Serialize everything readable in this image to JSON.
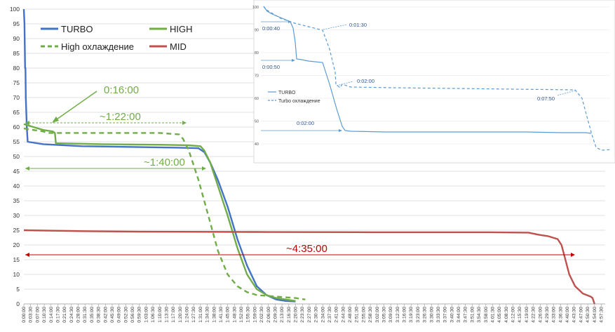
{
  "chart_data": [
    {
      "type": "line",
      "x_unit": "h:mm:ss",
      "ylim": [
        0,
        100
      ],
      "yticks": [
        0,
        5,
        10,
        15,
        20,
        25,
        30,
        35,
        40,
        45,
        50,
        55,
        60,
        65,
        70,
        75,
        80,
        85,
        90,
        95,
        100
      ],
      "xlim": [
        "0:00:00",
        "4:59:30"
      ],
      "xtick_step": "0:03:30",
      "xticks": [
        "0:00:00",
        "0:03:30",
        "0:07:00",
        "0:10:30",
        "0:14:00",
        "0:17:30",
        "0:21:00",
        "0:24:30",
        "0:28:00",
        "0:31:30",
        "0:35:00",
        "0:38:30",
        "0:42:00",
        "0:45:30",
        "0:49:00",
        "0:52:30",
        "0:56:00",
        "0:59:30",
        "1:03:00",
        "1:06:30",
        "1:10:00",
        "1:13:30",
        "1:17:00",
        "1:20:30",
        "1:24:00",
        "1:27:30",
        "1:31:00",
        "1:34:30",
        "1:38:00",
        "1:41:30",
        "1:45:00",
        "1:48:30",
        "1:52:00",
        "1:55:30",
        "1:59:00",
        "2:02:30",
        "2:06:00",
        "2:09:30",
        "2:13:00",
        "2:16:30",
        "2:20:00",
        "2:23:30",
        "2:27:00",
        "2:30:30",
        "2:34:00",
        "2:37:30",
        "2:41:00",
        "2:44:30",
        "2:48:00",
        "2:51:30",
        "2:55:00",
        "2:58:30",
        "3:02:00",
        "3:05:30",
        "3:09:00",
        "3:12:30",
        "3:16:00",
        "3:19:30",
        "3:23:00",
        "3:26:30",
        "3:30:00",
        "3:33:30",
        "3:37:00",
        "3:40:30",
        "3:44:00",
        "3:47:30",
        "3:51:00",
        "3:54:30",
        "3:58:00",
        "4:01:30",
        "4:05:00",
        "4:08:30",
        "4:12:00",
        "4:15:30",
        "4:19:00",
        "4:22:30",
        "4:26:00",
        "4:29:30",
        "4:33:00",
        "4:36:30",
        "4:40:00",
        "4:43:30",
        "4:47:00",
        "4:50:30",
        "4:54:00",
        "4:57:30"
      ],
      "grid": true,
      "legend": "top-left",
      "series": [
        {
          "name": "TURBO",
          "color": "#4472c4",
          "dash": false,
          "points": [
            [
              "0:00:00",
              100
            ],
            [
              "0:00:20",
              95
            ],
            [
              "0:00:40",
              80
            ],
            [
              "0:00:50",
              80
            ],
            [
              "0:01:00",
              70
            ],
            [
              "0:01:30",
              60
            ],
            [
              "0:02:00",
              55
            ],
            [
              "0:10:00",
              54.2
            ],
            [
              "0:30:00",
              53.5
            ],
            [
              "1:00:00",
              53.2
            ],
            [
              "1:20:00",
              53
            ],
            [
              "1:30:00",
              52.8
            ],
            [
              "1:33:00",
              51.5
            ],
            [
              "1:36:00",
              48
            ],
            [
              "1:40:00",
              42
            ],
            [
              "1:45:00",
              33
            ],
            [
              "1:50:00",
              22
            ],
            [
              "1:55:00",
              13
            ],
            [
              "2:00:00",
              6
            ],
            [
              "2:05:00",
              3
            ],
            [
              "2:10:00",
              1.5
            ],
            [
              "2:15:00",
              1
            ],
            [
              "2:20:00",
              0.8
            ]
          ]
        },
        {
          "name": "HIGH",
          "color": "#70ad47",
          "dash": false,
          "points": [
            [
              "0:00:00",
              61
            ],
            [
              "0:05:00",
              60
            ],
            [
              "0:10:00",
              59
            ],
            [
              "0:15:00",
              58.5
            ],
            [
              "0:16:00",
              58
            ],
            [
              "0:16:30",
              54.5
            ],
            [
              "0:40:00",
              54.2
            ],
            [
              "1:10:00",
              54
            ],
            [
              "1:25:00",
              53.8
            ],
            [
              "1:31:00",
              53.5
            ],
            [
              "1:33:00",
              52
            ],
            [
              "1:36:00",
              48
            ],
            [
              "1:40:00",
              40
            ],
            [
              "1:45:00",
              30
            ],
            [
              "1:50:00",
              19
            ],
            [
              "1:55:00",
              10
            ],
            [
              "2:00:00",
              5
            ],
            [
              "2:05:00",
              3
            ],
            [
              "2:10:00",
              2
            ],
            [
              "2:15:00",
              1.5
            ],
            [
              "2:20:00",
              1
            ]
          ]
        },
        {
          "name": "High охлаждение",
          "color": "#70ad47",
          "dash": true,
          "points": [
            [
              "0:00:00",
              59.5
            ],
            [
              "0:05:00",
              59
            ],
            [
              "0:10:00",
              58.5
            ],
            [
              "0:12:00",
              58
            ],
            [
              "0:30:00",
              58
            ],
            [
              "0:50:00",
              58
            ],
            [
              "1:10:00",
              58
            ],
            [
              "1:20:00",
              57.5
            ],
            [
              "1:22:00",
              56
            ],
            [
              "1:25:00",
              52
            ],
            [
              "1:30:00",
              42
            ],
            [
              "1:35:00",
              30
            ],
            [
              "1:40:00",
              18
            ],
            [
              "1:45:00",
              10
            ],
            [
              "1:50:00",
              6
            ],
            [
              "1:55:00",
              4
            ],
            [
              "2:00:00",
              3
            ],
            [
              "2:10:00",
              2.5
            ],
            [
              "2:20:00",
              2
            ],
            [
              "2:25:00",
              1.5
            ]
          ]
        },
        {
          "name": "MID",
          "color": "#c0504d",
          "dash": false,
          "points": [
            [
              "0:00:00",
              25
            ],
            [
              "0:30:00",
              24.7
            ],
            [
              "1:00:00",
              24.5
            ],
            [
              "2:00:00",
              24.4
            ],
            [
              "3:00:00",
              24.3
            ],
            [
              "4:00:00",
              24.3
            ],
            [
              "4:20:00",
              24.2
            ],
            [
              "4:25:00",
              23.5
            ],
            [
              "4:30:00",
              23
            ],
            [
              "4:35:00",
              22
            ],
            [
              "4:37:00",
              20
            ],
            [
              "4:39:00",
              15
            ],
            [
              "4:41:00",
              10
            ],
            [
              "4:44:00",
              6
            ],
            [
              "4:48:00",
              3.5
            ],
            [
              "4:52:00",
              2.5
            ],
            [
              "4:53:00",
              2
            ],
            [
              "4:54:00",
              0
            ]
          ]
        }
      ],
      "annotations": [
        {
          "text": "0:16:00",
          "color": "#70ad47"
        },
        {
          "text": "~1:22:00",
          "color": "#70ad47"
        },
        {
          "text": "~1:40:00",
          "color": "#70ad47"
        },
        {
          "text": "~4:35:00",
          "color": "#c00000"
        }
      ]
    },
    {
      "type": "line",
      "inset": true,
      "legend": "bottom-left",
      "series": [
        {
          "name": "TURBO",
          "color": "#5b9bd5",
          "dash": false
        },
        {
          "name": "Turbo охлаждение",
          "color": "#5b9bd5",
          "dash": true
        }
      ],
      "annotations": [
        "0:00:40",
        "0:01:30",
        "0:00:50",
        "0:02:00",
        "0:02:00",
        "0:07:50"
      ]
    }
  ],
  "labels": {
    "main_annotations": [
      "0:16:00",
      "~1:22:00",
      "~1:40:00",
      "~4:35:00"
    ],
    "inset_annotations": [
      "0:00:40",
      "0:01:30",
      "0:00:50",
      "0:02:00",
      "0:02:00",
      "0:07:50"
    ],
    "inset_legend": [
      "TURBO",
      "Turbo охлаждение"
    ],
    "inset_yticks": [
      "100",
      "90",
      "80",
      "70",
      "60",
      "50",
      "40"
    ]
  }
}
